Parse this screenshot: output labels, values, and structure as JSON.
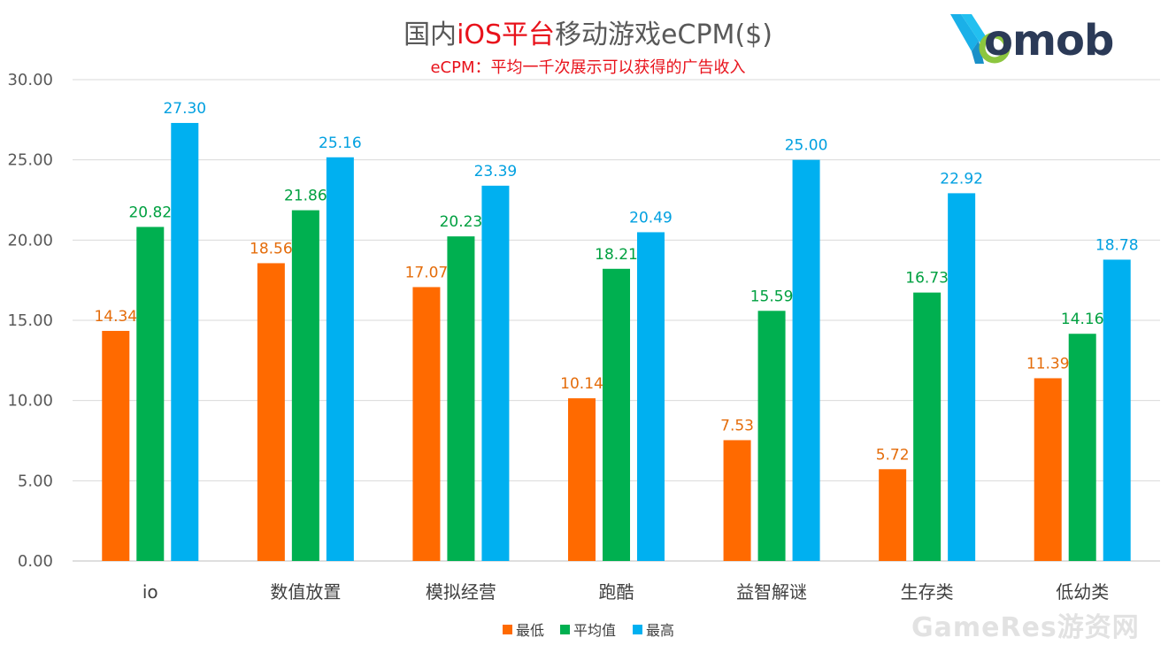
{
  "title_parts": {
    "pre": "国内",
    "highlight": "iOS平台",
    "post": "移动游戏eCPM($)"
  },
  "subtitle": "eCPM：平均一千次展示可以获得的广告收入",
  "logo": {
    "text": "omob",
    "mark_color": "#1ab0e8",
    "accent_color": "#8cc63f",
    "text_color": "#2b3a57"
  },
  "watermark": "GameRes游资网",
  "chart_data": {
    "type": "bar",
    "title": "国内iOS平台移动游戏eCPM($)",
    "subtitle": "eCPM：平均一千次展示可以获得的广告收入",
    "categories": [
      "io",
      "数值放置",
      "模拟经营",
      "跑酷",
      "益智解谜",
      "生存类",
      "低幼类"
    ],
    "series": [
      {
        "name": "最低",
        "color": "#ff6a00",
        "values": [
          14.34,
          18.56,
          17.07,
          10.14,
          7.53,
          5.72,
          11.39
        ]
      },
      {
        "name": "平均值",
        "color": "#00b050",
        "values": [
          20.82,
          21.86,
          20.23,
          18.21,
          15.59,
          16.73,
          14.16
        ]
      },
      {
        "name": "最高",
        "color": "#00b0f0",
        "values": [
          27.3,
          25.16,
          23.39,
          20.49,
          25.0,
          22.92,
          18.78
        ]
      }
    ],
    "ylim": [
      0,
      30
    ],
    "yticks": [
      "0.00",
      "5.00",
      "10.00",
      "15.00",
      "20.00",
      "25.00",
      "30.00"
    ],
    "grid": true,
    "legend_position": "bottom",
    "data_label_colors": [
      "#e46c0a",
      "#00a040",
      "#00a0e0"
    ],
    "xlabel": "",
    "ylabel": ""
  }
}
